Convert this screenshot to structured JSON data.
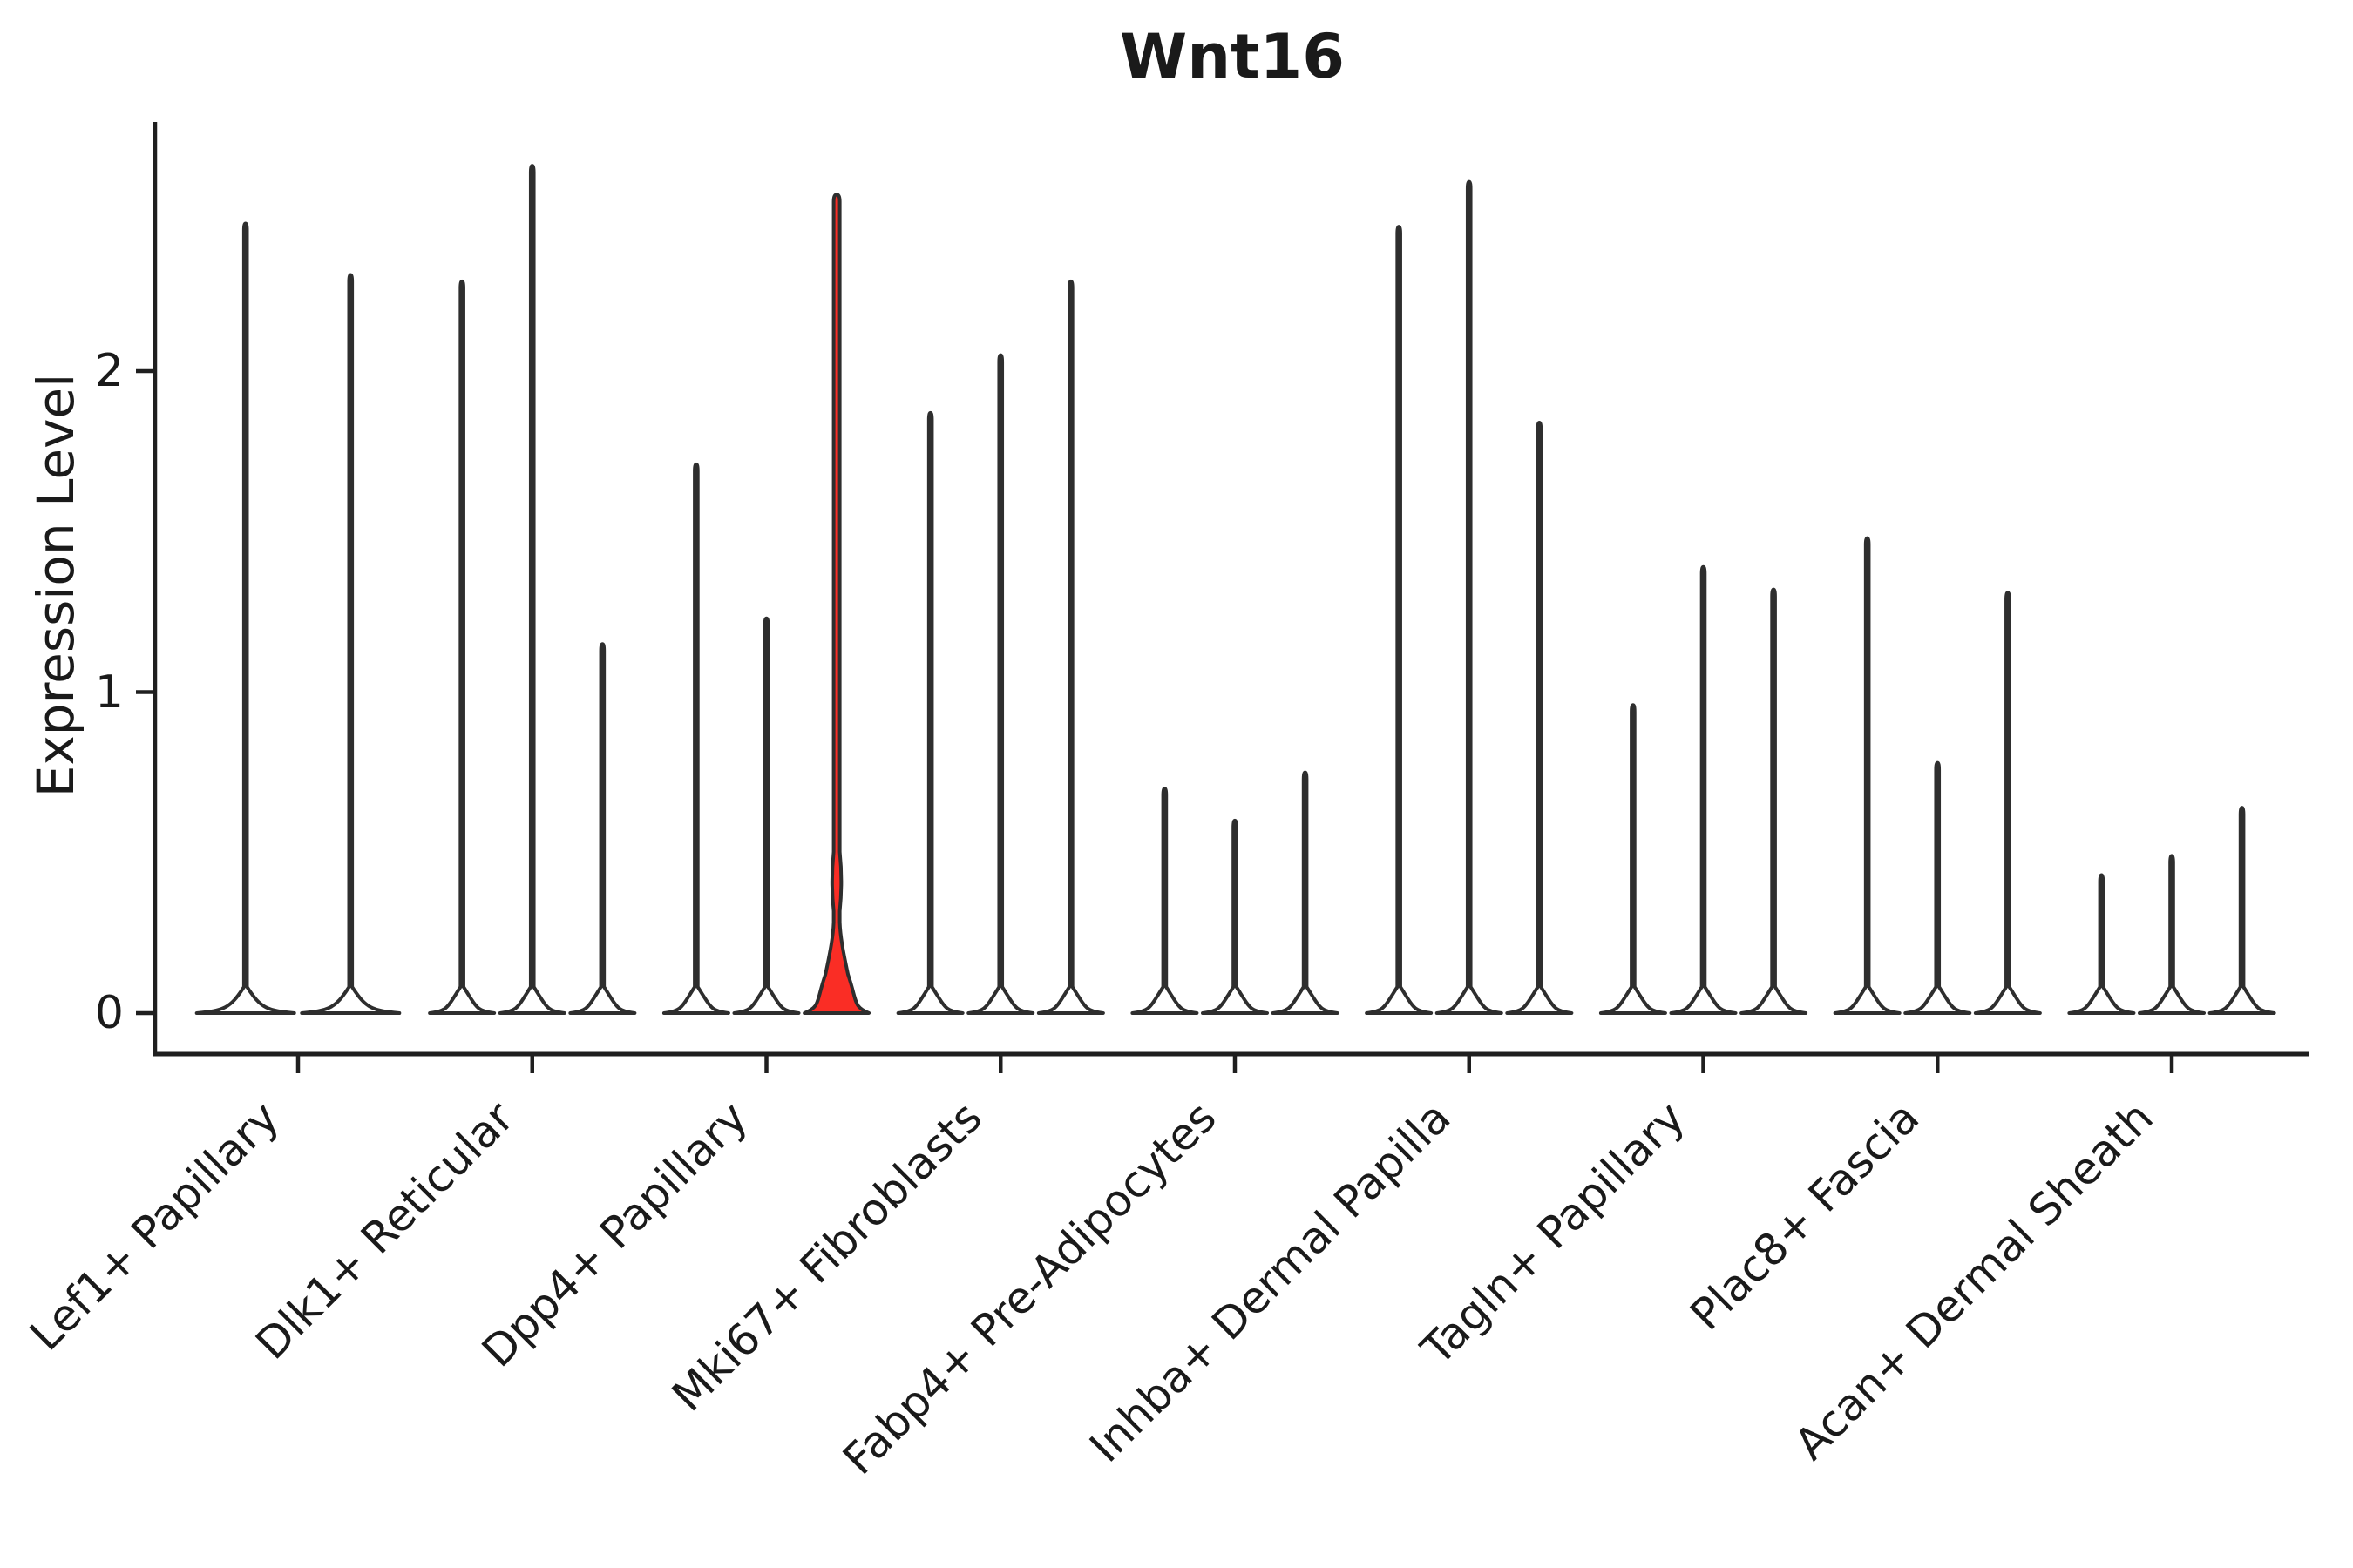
{
  "chart_data": {
    "type": "violin",
    "title": "Wnt16",
    "xlabel": "",
    "ylabel": "Expression Level",
    "ytick_labels": [
      "0",
      "1",
      "2"
    ],
    "ytick_values": [
      0,
      1,
      2
    ],
    "ylim": [
      -0.13,
      2.78
    ],
    "grid": false,
    "legend": "none",
    "line_color": "#2e2e2e",
    "spine_color": "#1f1f1f",
    "normal_fill": "#ffffff",
    "highlight_fill": "#fa2d25",
    "groups": [
      {
        "label": "Lef1+ Papillary",
        "violins": [
          {
            "max": 2.46
          },
          {
            "max": 2.3
          }
        ]
      },
      {
        "label": "Dlk1+ Reticular",
        "violins": [
          {
            "max": 2.28
          },
          {
            "max": 2.64
          },
          {
            "max": 1.15
          }
        ]
      },
      {
        "label": "Dpp4+ Papillary",
        "violins": [
          {
            "max": 1.71
          },
          {
            "max": 1.23
          },
          {
            "max": 2.55,
            "highlighted": true,
            "bulge_at": 0.41,
            "base_peak": 0.12
          }
        ]
      },
      {
        "label": "Mki67+ Fibroblasts",
        "violins": [
          {
            "max": 1.87
          },
          {
            "max": 2.05
          },
          {
            "max": 2.28
          }
        ]
      },
      {
        "label": "Fabp4+ Pre-Adipocytes",
        "violins": [
          {
            "max": 0.7
          },
          {
            "max": 0.6
          },
          {
            "max": 0.75
          }
        ]
      },
      {
        "label": "Inhba+ Dermal Papilla",
        "violins": [
          {
            "max": 2.45
          },
          {
            "max": 2.59
          },
          {
            "max": 1.84
          }
        ]
      },
      {
        "label": "Tagln+ Papillary",
        "violins": [
          {
            "max": 0.96
          },
          {
            "max": 1.39
          },
          {
            "max": 1.32
          }
        ]
      },
      {
        "label": "Plac8+ Fascia",
        "violins": [
          {
            "max": 1.48
          },
          {
            "max": 0.78
          },
          {
            "max": 1.31
          }
        ]
      },
      {
        "label": "Acan+ Dermal Sheath",
        "violins": [
          {
            "max": 0.43
          },
          {
            "max": 0.49
          },
          {
            "max": 0.64
          }
        ]
      }
    ]
  }
}
